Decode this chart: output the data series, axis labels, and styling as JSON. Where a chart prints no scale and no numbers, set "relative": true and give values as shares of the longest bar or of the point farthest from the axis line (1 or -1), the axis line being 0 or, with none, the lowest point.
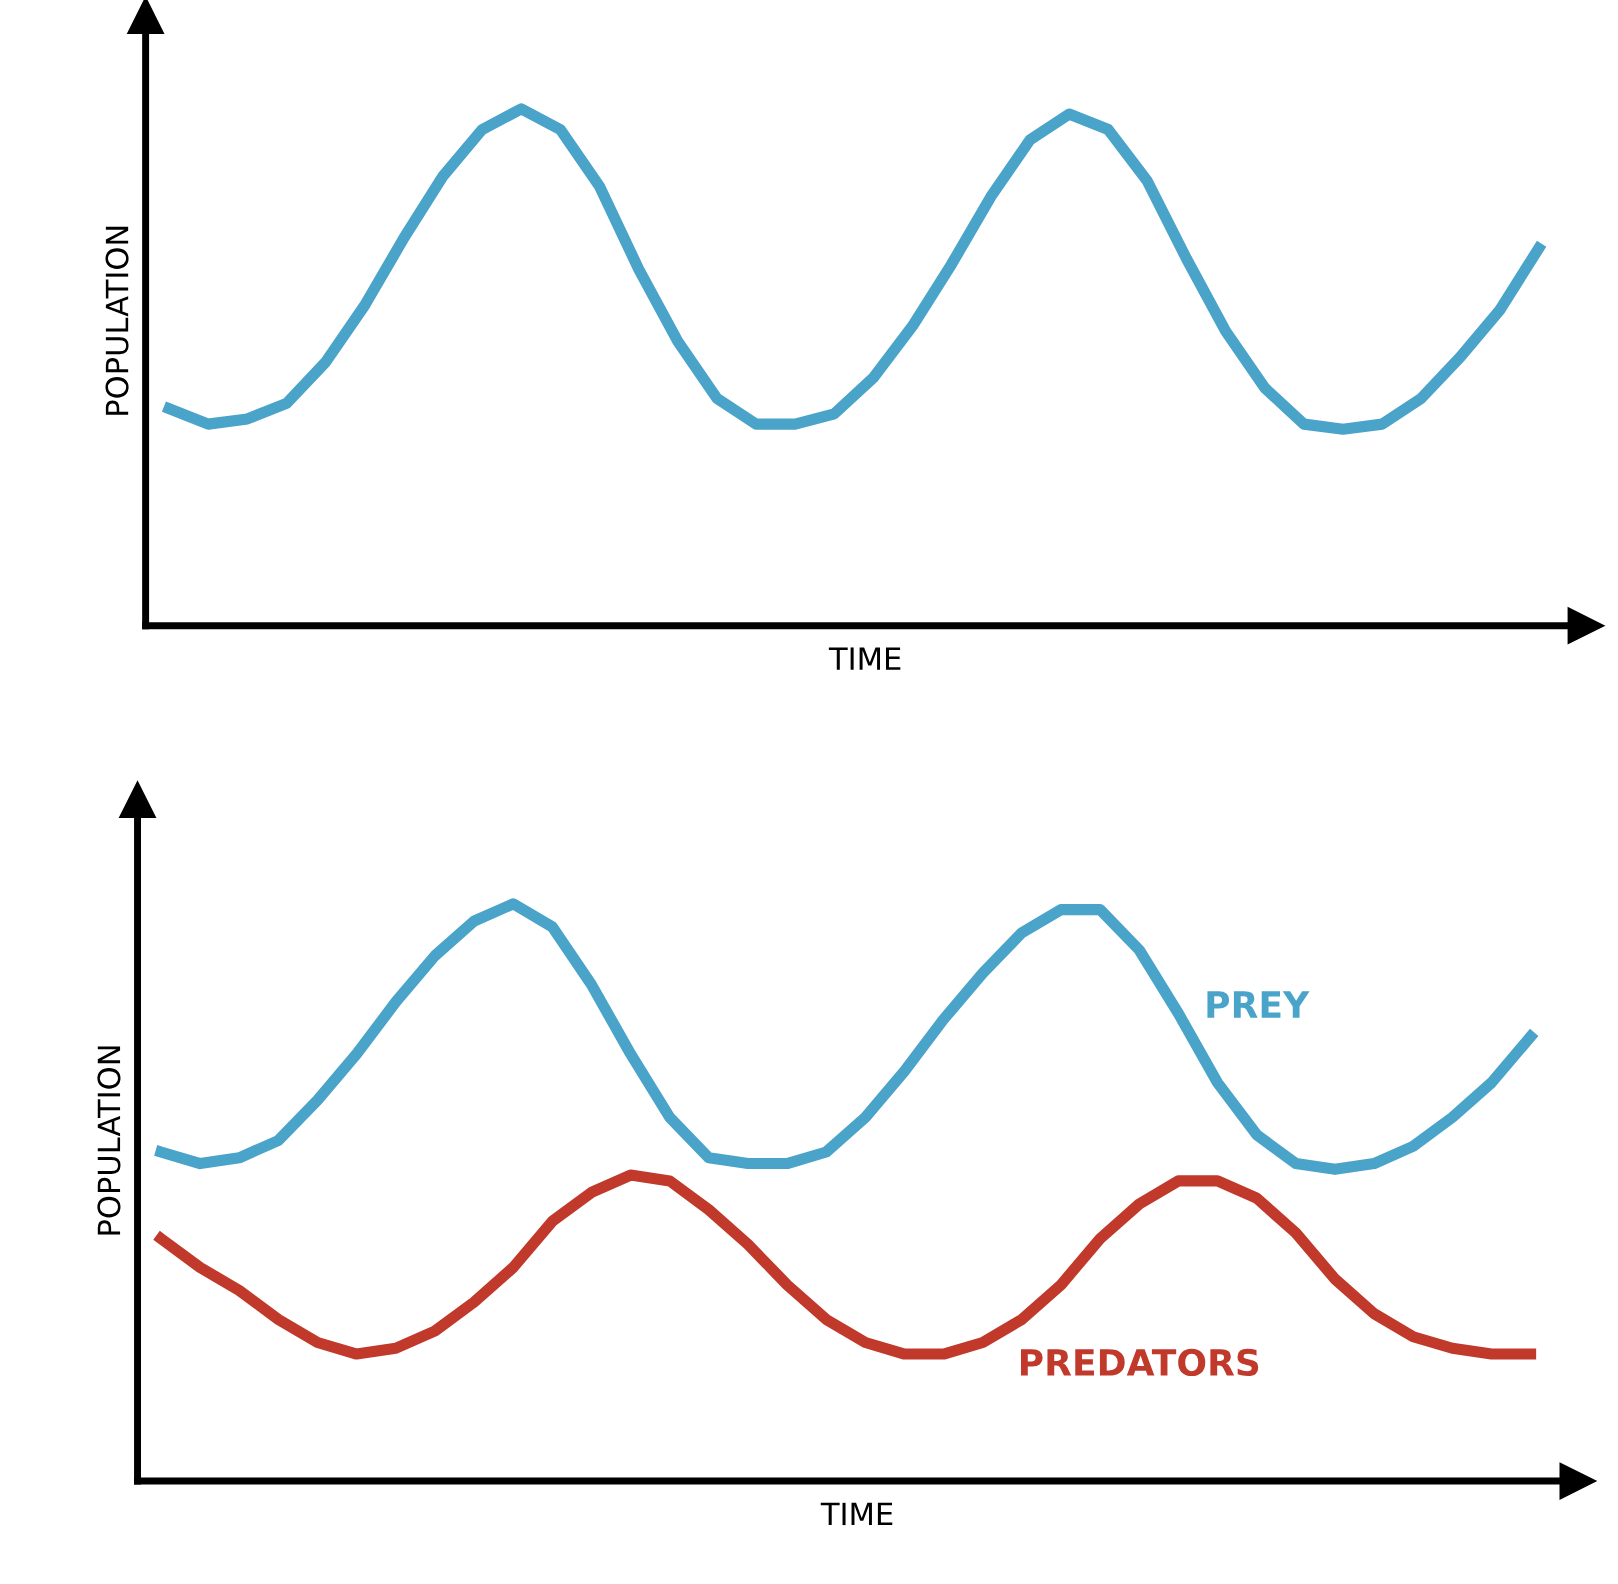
{
  "chart_data": [
    {
      "type": "line",
      "relative": true,
      "xlabel": "TIME",
      "ylabel": "POPULATION",
      "legend": false,
      "grid": false,
      "marker": "none",
      "line_style": "solid",
      "categories": [
        null,
        null,
        null,
        null,
        null,
        null,
        null,
        null,
        null,
        null,
        null,
        null,
        null,
        null,
        null,
        null,
        null,
        null,
        null,
        null,
        null,
        null,
        null,
        null,
        null,
        null,
        null,
        null,
        null,
        null,
        null,
        null,
        null,
        null,
        null,
        null
      ],
      "series": [
        {
          "color": "#4aa3c8",
          "values": [
            0.42,
            0.39,
            0.4,
            0.43,
            0.51,
            0.62,
            0.75,
            0.87,
            0.96,
            1,
            0.96,
            0.85,
            0.69,
            0.55,
            0.44,
            0.39,
            0.39,
            0.41,
            0.48,
            0.58,
            0.7,
            0.83,
            0.94,
            0.99,
            0.96,
            0.86,
            0.71,
            0.57,
            0.46,
            0.39,
            0.38,
            0.39,
            0.44,
            0.52,
            0.61,
            0.73
          ]
        }
      ]
    },
    {
      "type": "line",
      "relative": true,
      "xlabel": "TIME",
      "ylabel": "POPULATION",
      "legend": false,
      "grid": false,
      "marker": "none",
      "line_style": "solid",
      "categories": [
        null,
        null,
        null,
        null,
        null,
        null,
        null,
        null,
        null,
        null,
        null,
        null,
        null,
        null,
        null,
        null,
        null,
        null,
        null,
        null,
        null,
        null,
        null,
        null,
        null,
        null,
        null,
        null,
        null,
        null,
        null,
        null,
        null,
        null,
        null,
        null
      ],
      "series": [
        {
          "name": "PREY",
          "color": "#4aa3c8",
          "values": [
            0.57,
            0.55,
            0.56,
            0.59,
            0.66,
            0.74,
            0.83,
            0.91,
            0.97,
            1,
            0.96,
            0.86,
            0.74,
            0.63,
            0.56,
            0.55,
            0.55,
            0.57,
            0.63,
            0.71,
            0.8,
            0.88,
            0.95,
            0.99,
            0.99,
            0.92,
            0.81,
            0.69,
            0.6,
            0.55,
            0.54,
            0.55,
            0.58,
            0.63,
            0.69,
            0.77
          ]
        },
        {
          "name": "PREDATORS",
          "color": "#c0392b",
          "values": [
            0.42,
            0.37,
            0.33,
            0.28,
            0.24,
            0.22,
            0.23,
            0.26,
            0.31,
            0.37,
            0.45,
            0.5,
            0.53,
            0.52,
            0.47,
            0.41,
            0.34,
            0.28,
            0.24,
            0.22,
            0.22,
            0.24,
            0.28,
            0.34,
            0.42,
            0.48,
            0.52,
            0.52,
            0.49,
            0.43,
            0.35,
            0.29,
            0.25,
            0.23,
            0.22,
            0.22
          ]
        }
      ]
    }
  ]
}
